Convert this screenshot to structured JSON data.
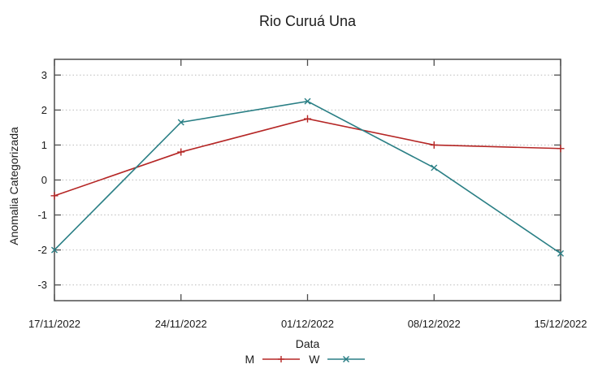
{
  "window": {
    "background": "#ffffff"
  },
  "chart_data": {
    "type": "line",
    "title": "Rio Curuá Una",
    "xlabel": "Data",
    "ylabel": "Anomalia Categorizada",
    "categories": [
      "17/11/2022",
      "24/11/2022",
      "01/12/2022",
      "08/12/2022",
      "15/12/2022"
    ],
    "yticks": [
      -3,
      -2,
      -1,
      0,
      1,
      2,
      3
    ],
    "ylim": [
      -3.45,
      3.45
    ],
    "grid": "horizontal-dotted",
    "legend_position": "bottom-center",
    "series": [
      {
        "name": "M",
        "color": "#b52625",
        "marker": "plus",
        "values": [
          -0.45,
          0.8,
          1.75,
          1.0,
          0.9
        ]
      },
      {
        "name": "W",
        "color": "#2a7f85",
        "marker": "cross",
        "values": [
          -2.0,
          1.65,
          2.25,
          0.35,
          -2.1
        ]
      }
    ],
    "colors": {
      "axis_border": "#4d4d4d",
      "grid": "#bbbbbb",
      "text": "#1a1a1a"
    }
  }
}
